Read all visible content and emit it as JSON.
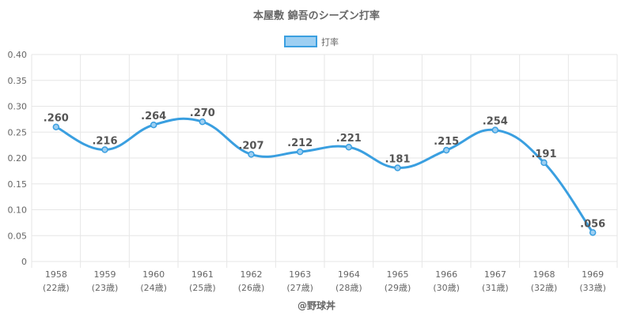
{
  "chart_data": {
    "type": "line",
    "title": "本屋敷 錦吾のシーズン打率",
    "series": [
      {
        "name": "打率",
        "values": [
          0.26,
          0.216,
          0.264,
          0.27,
          0.207,
          0.212,
          0.221,
          0.181,
          0.215,
          0.254,
          0.191,
          0.056
        ]
      }
    ],
    "categories": [
      "1958",
      "1959",
      "1960",
      "1961",
      "1962",
      "1963",
      "1964",
      "1965",
      "1966",
      "1967",
      "1968",
      "1969"
    ],
    "category_sublabels": [
      "(22歳)",
      "(23歳)",
      "(24歳)",
      "(25歳)",
      "(26歳)",
      "(27歳)",
      "(28歳)",
      "(29歳)",
      "(30歳)",
      "(31歳)",
      "(32歳)",
      "(33歳)"
    ],
    "data_labels": [
      ".260",
      ".216",
      ".264",
      ".270",
      ".207",
      ".212",
      ".221",
      ".181",
      ".215",
      ".254",
      ".191",
      ".056"
    ],
    "y_ticks": [
      "0",
      "0.05",
      "0.10",
      "0.15",
      "0.20",
      "0.25",
      "0.30",
      "0.35",
      "0.40"
    ],
    "ylim": [
      0,
      0.4
    ],
    "grid": true,
    "legend_position": "top-center",
    "colors": {
      "line": "#3a9fe0",
      "fill": "#9dcff2",
      "grid": "#e6e6e6",
      "text": "#666666"
    }
  },
  "footer": {
    "credit": "@野球丼"
  }
}
